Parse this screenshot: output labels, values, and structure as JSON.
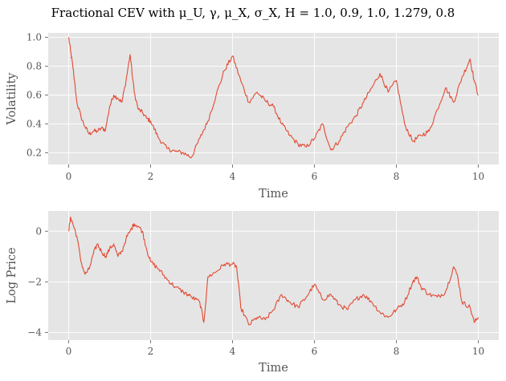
{
  "figure": {
    "title": "Fractional CEV with μ_U, γ, μ_X, σ_X, H = 1.0, 0.9, 1.0, 1.279, 0.8"
  },
  "colors": {
    "panel_bg": "#e5e5e5",
    "grid": "#ffffff",
    "line": "#e24a33",
    "tick_text": "#555555"
  },
  "chart_data": [
    {
      "type": "line",
      "xlabel": "Time",
      "ylabel": "Volatility",
      "xlim": [
        -0.5,
        10.5
      ],
      "ylim": [
        0.12,
        1.03
      ],
      "xticks": [
        0,
        2,
        4,
        6,
        8,
        10
      ],
      "xtick_labels": [
        "0",
        "2",
        "4",
        "6",
        "8",
        "10"
      ],
      "yticks": [
        0.2,
        0.4,
        0.6,
        0.8,
        1.0
      ],
      "ytick_labels": [
        "0.2",
        "0.4",
        "0.6",
        "0.8",
        "1.0"
      ],
      "grid": true,
      "series": [
        {
          "x": [
            0,
            0.05,
            0.1,
            0.2,
            0.3,
            0.4,
            0.5,
            0.6,
            0.7,
            0.8,
            0.9,
            1.0,
            1.1,
            1.2,
            1.3,
            1.4,
            1.5,
            1.6,
            1.7,
            1.8,
            1.9,
            2.0,
            2.2,
            2.4,
            2.6,
            2.8,
            3.0,
            3.2,
            3.4,
            3.6,
            3.8,
            4.0,
            4.2,
            4.4,
            4.6,
            4.8,
            5.0,
            5.2,
            5.4,
            5.6,
            5.8,
            6.0,
            6.2,
            6.4,
            6.6,
            6.8,
            7.0,
            7.2,
            7.4,
            7.6,
            7.8,
            8.0,
            8.2,
            8.4,
            8.6,
            8.8,
            9.0,
            9.2,
            9.4,
            9.6,
            9.8,
            9.9,
            10.0
          ],
          "y": [
            1.0,
            0.9,
            0.8,
            0.55,
            0.45,
            0.38,
            0.33,
            0.35,
            0.35,
            0.37,
            0.36,
            0.52,
            0.6,
            0.58,
            0.55,
            0.7,
            0.88,
            0.62,
            0.5,
            0.48,
            0.44,
            0.42,
            0.3,
            0.23,
            0.21,
            0.2,
            0.17,
            0.3,
            0.42,
            0.6,
            0.77,
            0.87,
            0.7,
            0.55,
            0.62,
            0.56,
            0.52,
            0.4,
            0.32,
            0.26,
            0.24,
            0.3,
            0.4,
            0.22,
            0.28,
            0.38,
            0.45,
            0.55,
            0.65,
            0.75,
            0.62,
            0.7,
            0.4,
            0.28,
            0.32,
            0.35,
            0.5,
            0.65,
            0.55,
            0.72,
            0.85,
            0.7,
            0.6
          ]
        }
      ]
    },
    {
      "type": "line",
      "xlabel": "Time",
      "ylabel": "Log Price",
      "xlim": [
        -0.5,
        10.5
      ],
      "ylim": [
        -4.3,
        0.8
      ],
      "xticks": [
        0,
        2,
        4,
        6,
        8,
        10
      ],
      "xtick_labels": [
        "0",
        "2",
        "4",
        "6",
        "8",
        "10"
      ],
      "yticks": [
        0,
        -2,
        -4
      ],
      "ytick_labels": [
        "0",
        "−2",
        "−4"
      ],
      "grid": true,
      "series": [
        {
          "x": [
            0,
            0.05,
            0.1,
            0.2,
            0.3,
            0.4,
            0.5,
            0.6,
            0.7,
            0.8,
            0.9,
            1.0,
            1.1,
            1.2,
            1.3,
            1.4,
            1.5,
            1.6,
            1.7,
            1.8,
            1.9,
            2.0,
            2.2,
            2.4,
            2.6,
            2.8,
            3.0,
            3.2,
            3.3,
            3.4,
            3.6,
            3.8,
            4.0,
            4.1,
            4.2,
            4.4,
            4.6,
            4.8,
            5.0,
            5.2,
            5.4,
            5.6,
            5.8,
            6.0,
            6.2,
            6.4,
            6.6,
            6.8,
            7.0,
            7.2,
            7.4,
            7.6,
            7.8,
            8.0,
            8.2,
            8.4,
            8.5,
            8.6,
            8.8,
            9.0,
            9.2,
            9.4,
            9.5,
            9.6,
            9.8,
            9.9,
            10.0
          ],
          "y": [
            0,
            0.55,
            0.3,
            -0.2,
            -1.2,
            -1.7,
            -1.5,
            -0.9,
            -0.5,
            -0.8,
            -1.0,
            -0.7,
            -0.5,
            -1.0,
            -0.8,
            -0.3,
            0.0,
            0.3,
            0.2,
            0.0,
            -0.7,
            -1.2,
            -1.5,
            -1.9,
            -2.2,
            -2.4,
            -2.6,
            -2.8,
            -3.6,
            -1.8,
            -1.6,
            -1.3,
            -1.3,
            -1.4,
            -3.0,
            -3.7,
            -3.4,
            -3.5,
            -3.1,
            -2.5,
            -2.8,
            -3.0,
            -2.6,
            -2.1,
            -2.7,
            -2.5,
            -2.9,
            -3.1,
            -2.7,
            -2.5,
            -2.8,
            -3.2,
            -3.4,
            -3.1,
            -2.8,
            -2.0,
            -1.8,
            -2.2,
            -2.5,
            -2.6,
            -2.4,
            -1.4,
            -1.8,
            -2.8,
            -3.0,
            -3.6,
            -3.4
          ]
        }
      ]
    }
  ]
}
